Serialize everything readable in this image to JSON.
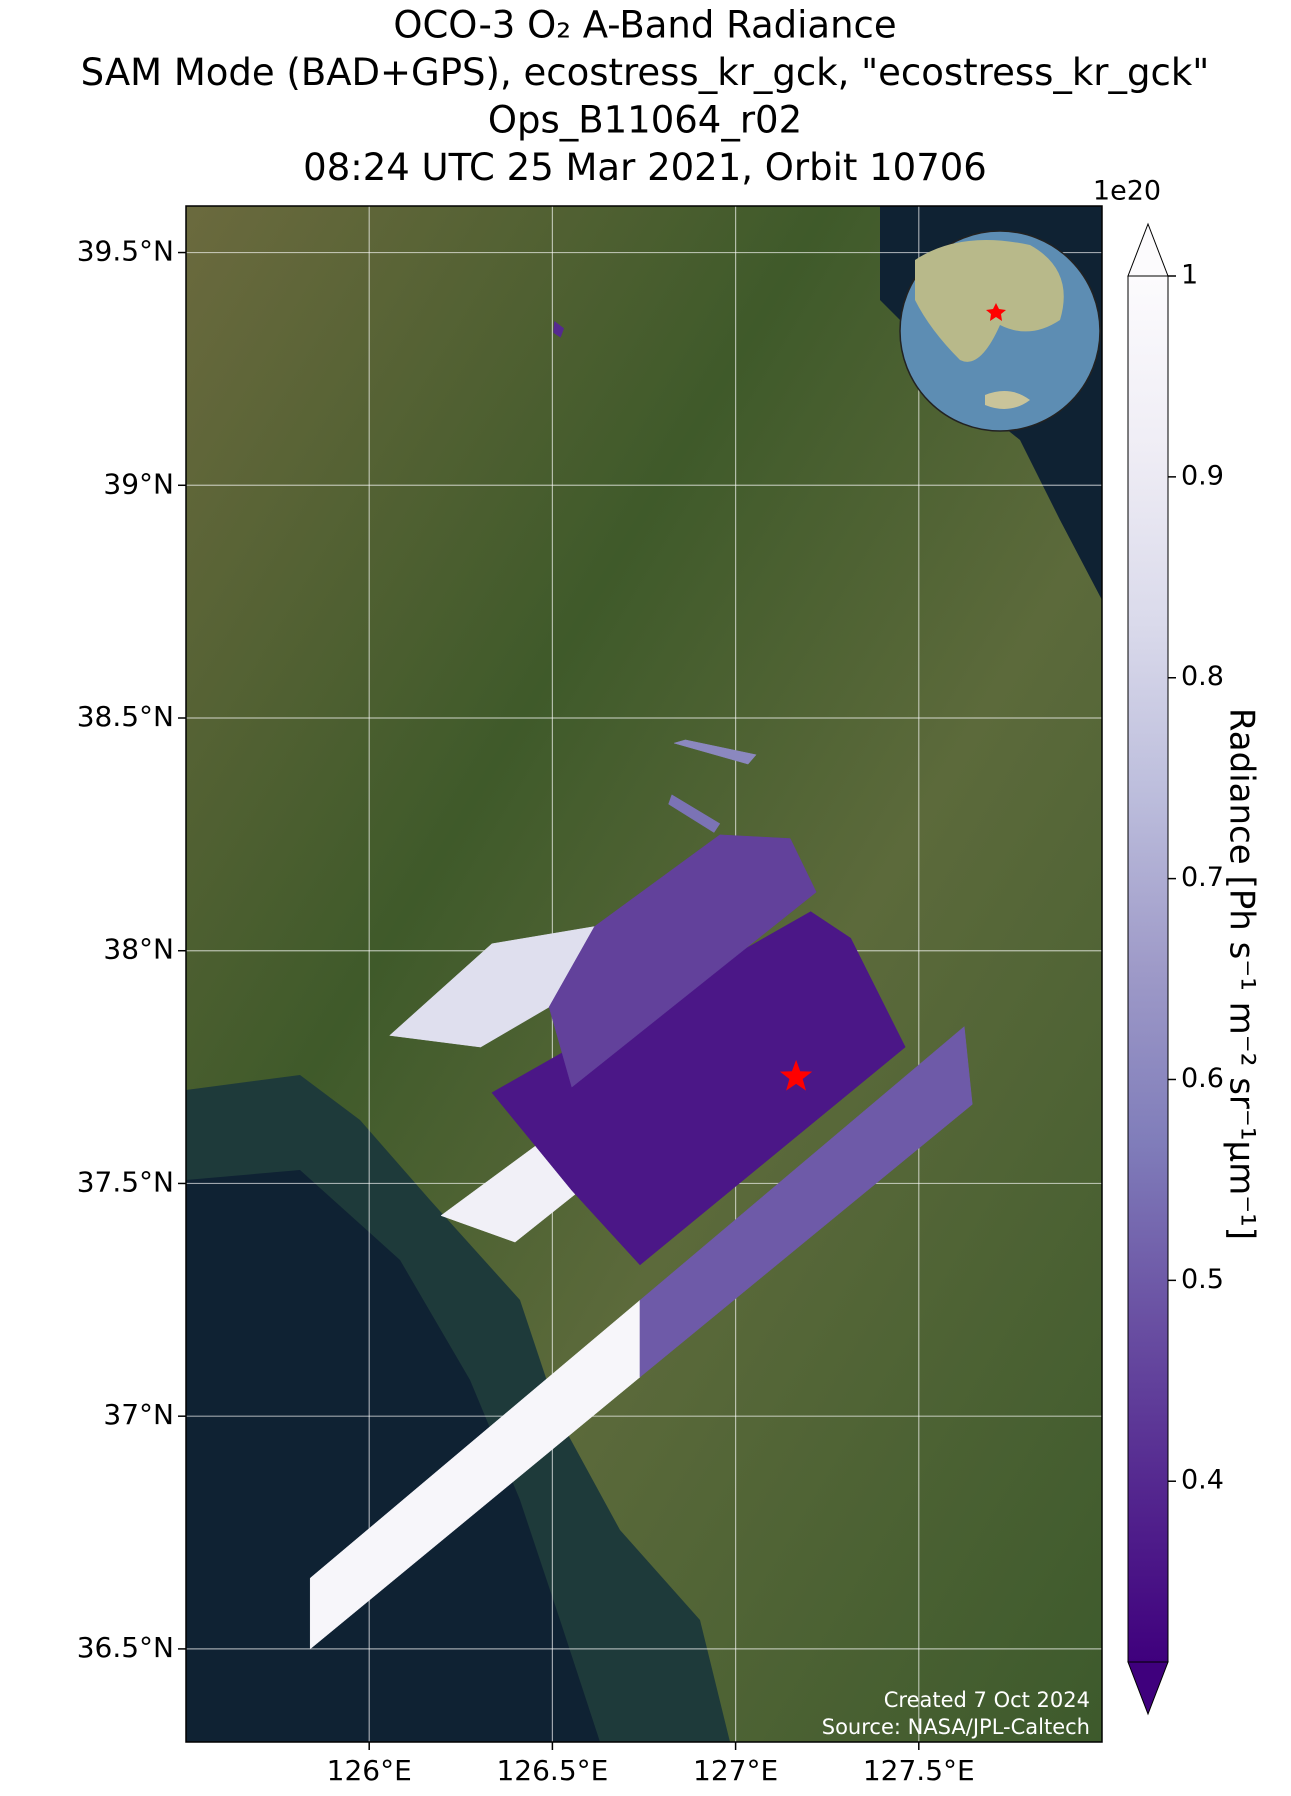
{
  "chart_data": {
    "type": "map",
    "title": [
      "OCO-3 O₂ A-Band Radiance",
      "SAM Mode (BAD+GPS), ecostress_kr_gck, \"ecostress_kr_gck\"",
      "Ops_B11064_r02",
      "08:24 UTC 25 Mar 2021, Orbit 10706"
    ],
    "xlim": [
      125.5,
      128.0
    ],
    "ylim": [
      36.3,
      39.6
    ],
    "xticks": [
      {
        "value": 126,
        "label": "126°E"
      },
      {
        "value": 126.5,
        "label": "126.5°E"
      },
      {
        "value": 127,
        "label": "127°E"
      },
      {
        "value": 127.5,
        "label": "127.5°E"
      }
    ],
    "yticks": [
      {
        "value": 36.5,
        "label": "36.5°N"
      },
      {
        "value": 37,
        "label": "37°N"
      },
      {
        "value": 37.5,
        "label": "37.5°N"
      },
      {
        "value": 38,
        "label": "38°N"
      },
      {
        "value": 38.5,
        "label": "38.5°N"
      },
      {
        "value": 39,
        "label": "39°N"
      },
      {
        "value": 39.5,
        "label": "39.5°N"
      }
    ],
    "grid": true,
    "swaths": [
      {
        "lon": [
          125.839,
          126.739,
          126.739,
          125.839
        ],
        "lat": [
          36.5,
          37.084,
          37.249,
          36.652
        ],
        "value": 0.97
      },
      {
        "lon": [
          126.739,
          127.646,
          127.624,
          126.739
        ],
        "lat": [
          37.084,
          37.67,
          37.837,
          37.249
        ],
        "value": 0.5
      },
      {
        "lon": [
          126.196,
          126.46,
          126.615,
          126.398
        ],
        "lat": [
          37.431,
          37.584,
          37.51,
          37.374
        ],
        "value": 0.93
      },
      {
        "lon": [
          126.335,
          127.205,
          127.314,
          127.463,
          126.739,
          126.553
        ],
        "lat": [
          37.695,
          38.084,
          38.027,
          37.793,
          37.325,
          37.485
        ],
        "value": 0.36
      },
      {
        "lon": [
          126.056,
          126.335,
          126.615,
          126.491,
          126.304
        ],
        "lat": [
          37.818,
          38.015,
          38.052,
          37.879,
          37.793
        ],
        "value": 0.85
      },
      {
        "lon": [
          126.491,
          126.615,
          126.957,
          127.149,
          127.22,
          126.553
        ],
        "lat": [
          37.879,
          38.052,
          38.249,
          38.241,
          38.126,
          37.707
        ],
        "value": 0.45
      },
      {
        "lon": [
          126.832,
          126.863,
          127.056,
          127.034
        ],
        "lat": [
          38.446,
          38.453,
          38.421,
          38.401
        ],
        "value": 0.6
      },
      {
        "lon": [
          126.826,
          126.957,
          126.941,
          126.817
        ],
        "lat": [
          38.335,
          38.273,
          38.254,
          38.315
        ],
        "value": 0.55
      },
      {
        "lon": [
          126.506,
          126.531,
          126.522,
          126.503
        ],
        "lat": [
          39.352,
          39.337,
          39.318,
          39.328
        ],
        "value": 0.4
      }
    ],
    "target": {
      "lon": 127.165,
      "lat": 37.729,
      "color": "#ff0000"
    },
    "colorbar": {
      "label": "Radiance [Ph s⁻¹ m⁻² sr⁻¹μm⁻¹]",
      "offset_label": "1e20",
      "clim": [
        0.31,
        1.0
      ],
      "ticks": [
        0.4,
        0.5,
        0.6,
        0.7,
        0.8,
        0.9,
        1.0
      ],
      "extend": "both",
      "colormap": [
        "#3f007d",
        "#54278f",
        "#6a51a3",
        "#807dba",
        "#9e9ac8",
        "#bcbddc",
        "#dadaeb",
        "#efedf5",
        "#fcfbfd"
      ]
    },
    "annotations": [
      "Created 7 Oct 2024",
      "Source: NASA/JPL-Caltech"
    ]
  }
}
